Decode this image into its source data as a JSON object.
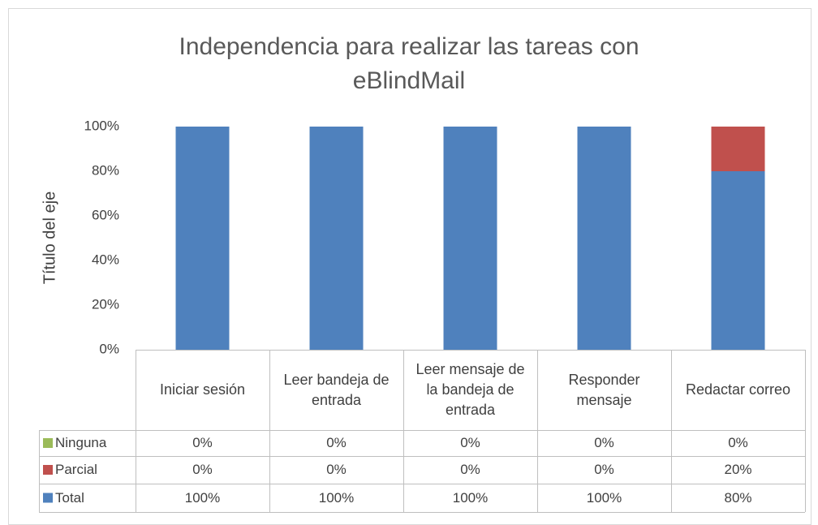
{
  "chart_data": {
    "type": "stacked_bar",
    "title": "Independencia para realizar las tareas con eBlindMail",
    "y_label": "Título del eje",
    "categories": [
      "Iniciar sesión",
      "Leer bandeja de entrada",
      "Leer mensaje de la bandeja de entrada",
      "Responder mensaje",
      "Redactar correo"
    ],
    "series": [
      {
        "name": "Total",
        "color": "#4f81bd",
        "values": [
          100,
          100,
          100,
          100,
          80
        ],
        "value_labels": [
          "100%",
          "100%",
          "100%",
          "100%",
          "80%"
        ]
      },
      {
        "name": "Parcial",
        "color": "#c0504d",
        "values": [
          0,
          0,
          0,
          0,
          20
        ],
        "value_labels": [
          "0%",
          "0%",
          "0%",
          "0%",
          "20%"
        ]
      },
      {
        "name": "Ninguna",
        "color": "#9bbb59",
        "values": [
          0,
          0,
          0,
          0,
          0
        ],
        "value_labels": [
          "0%",
          "0%",
          "0%",
          "0%",
          "0%"
        ]
      }
    ],
    "ylim": [
      0,
      100
    ],
    "yticks": [
      {
        "value": 0,
        "label": "0%"
      },
      {
        "value": 20,
        "label": "20%"
      },
      {
        "value": 40,
        "label": "40%"
      },
      {
        "value": 60,
        "label": "60%"
      },
      {
        "value": 80,
        "label": "80%"
      },
      {
        "value": 100,
        "label": "100%"
      }
    ],
    "grid": false
  }
}
